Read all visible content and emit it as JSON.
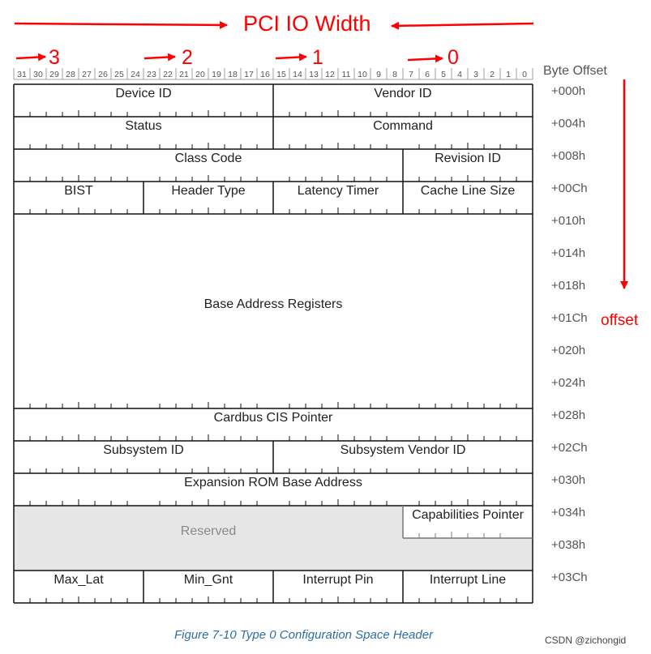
{
  "title": "PCI IO Width",
  "byte_lane_numbers": [
    "3",
    "2",
    "1",
    "0"
  ],
  "bit_numbers": [
    "31",
    "30",
    "29",
    "28",
    "27",
    "26",
    "25",
    "24",
    "23",
    "22",
    "21",
    "20",
    "19",
    "18",
    "17",
    "16",
    "15",
    "14",
    "13",
    "12",
    "11",
    "10",
    "9",
    "8",
    "7",
    "6",
    "5",
    "4",
    "3",
    "2",
    "1",
    "0"
  ],
  "byte_offset_label": "Byte Offset",
  "offsets": [
    "+000h",
    "+004h",
    "+008h",
    "+00Ch",
    "+010h",
    "+014h",
    "+018h",
    "+01Ch",
    "+020h",
    "+024h",
    "+028h",
    "+02Ch",
    "+030h",
    "+034h",
    "+038h",
    "+03Ch"
  ],
  "offset_word": "offset",
  "fields": {
    "device_id": "Device ID",
    "vendor_id": "Vendor ID",
    "status": "Status",
    "command": "Command",
    "class_code": "Class Code",
    "revision_id": "Revision ID",
    "bist": "BIST",
    "header_type": "Header Type",
    "latency_timer": "Latency Timer",
    "cache_line_size": "Cache Line Size",
    "base_address_registers": "Base Address Registers",
    "cardbus_cis_pointer": "Cardbus CIS Pointer",
    "subsystem_id": "Subsystem ID",
    "subsystem_vendor_id": "Subsystem Vendor ID",
    "expansion_rom": "Expansion ROM Base Address",
    "reserved": "Reserved",
    "capabilities_pointer": "Capabilities Pointer",
    "max_lat": "Max_Lat",
    "min_gnt": "Min_Gnt",
    "interrupt_pin": "Interrupt Pin",
    "interrupt_line": "Interrupt Line"
  },
  "caption": "Figure 7-10 Type 0 Configuration Space Header",
  "watermark": "CSDN @zichongid",
  "colors": {
    "annotation": "#ff0000",
    "reserved_fill": "#e6e6e6",
    "caption": "#2d6ea8"
  }
}
